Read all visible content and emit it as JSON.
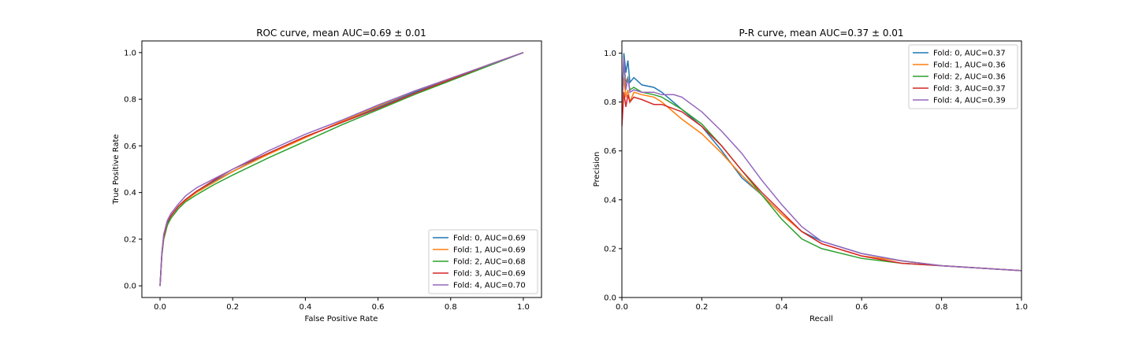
{
  "chart_data": [
    {
      "type": "line",
      "title": "ROC curve, mean AUC=0.69 ± 0.01",
      "xlabel": "False Positive Rate",
      "ylabel": "True Positive Rate",
      "xlim": [
        -0.05,
        1.05
      ],
      "ylim": [
        -0.05,
        1.05
      ],
      "xticks": [
        "0.0",
        "0.2",
        "0.4",
        "0.6",
        "0.8",
        "1.0"
      ],
      "yticks": [
        "0.0",
        "0.2",
        "0.4",
        "0.6",
        "0.8",
        "1.0"
      ],
      "grid": false,
      "legend_position": "lower-right",
      "series": [
        {
          "name": "Fold: 0, AUC=0.69",
          "color": "#1f77b4",
          "x": [
            0,
            0.005,
            0.01,
            0.02,
            0.03,
            0.05,
            0.07,
            0.1,
            0.15,
            0.2,
            0.3,
            0.4,
            0.5,
            0.6,
            0.7,
            0.8,
            0.9,
            1.0
          ],
          "y": [
            0,
            0.14,
            0.21,
            0.27,
            0.3,
            0.34,
            0.37,
            0.405,
            0.45,
            0.49,
            0.57,
            0.64,
            0.7,
            0.765,
            0.83,
            0.885,
            0.945,
            1.0
          ]
        },
        {
          "name": "Fold: 1, AUC=0.69",
          "color": "#ff7f0e",
          "x": [
            0,
            0.005,
            0.01,
            0.02,
            0.03,
            0.05,
            0.07,
            0.1,
            0.15,
            0.2,
            0.3,
            0.4,
            0.5,
            0.6,
            0.7,
            0.8,
            0.9,
            1.0
          ],
          "y": [
            0,
            0.13,
            0.2,
            0.26,
            0.29,
            0.33,
            0.365,
            0.4,
            0.445,
            0.49,
            0.565,
            0.635,
            0.705,
            0.77,
            0.835,
            0.89,
            0.945,
            1.0
          ]
        },
        {
          "name": "Fold: 2, AUC=0.68",
          "color": "#2ca02c",
          "x": [
            0,
            0.005,
            0.01,
            0.02,
            0.03,
            0.05,
            0.07,
            0.1,
            0.15,
            0.2,
            0.3,
            0.4,
            0.5,
            0.6,
            0.7,
            0.8,
            0.9,
            1.0
          ],
          "y": [
            0,
            0.13,
            0.2,
            0.26,
            0.29,
            0.33,
            0.36,
            0.39,
            0.435,
            0.475,
            0.55,
            0.62,
            0.69,
            0.755,
            0.82,
            0.88,
            0.94,
            1.0
          ]
        },
        {
          "name": "Fold: 3, AUC=0.69",
          "color": "#d62728",
          "x": [
            0,
            0.005,
            0.01,
            0.02,
            0.03,
            0.05,
            0.07,
            0.1,
            0.15,
            0.2,
            0.3,
            0.4,
            0.5,
            0.6,
            0.7,
            0.8,
            0.9,
            1.0
          ],
          "y": [
            0,
            0.14,
            0.21,
            0.275,
            0.3,
            0.34,
            0.37,
            0.405,
            0.455,
            0.5,
            0.57,
            0.64,
            0.7,
            0.76,
            0.825,
            0.885,
            0.945,
            1.0
          ]
        },
        {
          "name": "Fold: 4, AUC=0.70",
          "color": "#9467bd",
          "x": [
            0,
            0.005,
            0.01,
            0.02,
            0.03,
            0.05,
            0.07,
            0.1,
            0.15,
            0.2,
            0.3,
            0.4,
            0.5,
            0.6,
            0.7,
            0.8,
            0.9,
            1.0
          ],
          "y": [
            0,
            0.14,
            0.22,
            0.28,
            0.31,
            0.35,
            0.385,
            0.42,
            0.46,
            0.5,
            0.58,
            0.65,
            0.71,
            0.775,
            0.835,
            0.89,
            0.945,
            1.0
          ]
        }
      ]
    },
    {
      "type": "line",
      "title": "P-R curve, mean AUC=0.37 ± 0.01",
      "xlabel": "Recall",
      "ylabel": "Precision",
      "xlim": [
        0.0,
        1.0
      ],
      "ylim": [
        0.0,
        1.05
      ],
      "xticks": [
        "0.0",
        "0.2",
        "0.4",
        "0.6",
        "0.8",
        "1.0"
      ],
      "yticks": [
        "0.0",
        "0.2",
        "0.4",
        "0.6",
        "0.8",
        "1.0"
      ],
      "grid": false,
      "legend_position": "top-right",
      "series": [
        {
          "name": "Fold: 0, AUC=0.37",
          "color": "#1f77b4",
          "x": [
            0,
            0.005,
            0.01,
            0.015,
            0.02,
            0.03,
            0.05,
            0.08,
            0.1,
            0.15,
            0.2,
            0.25,
            0.3,
            0.35,
            0.4,
            0.45,
            0.5,
            0.6,
            0.7,
            0.8,
            0.9,
            1.0
          ],
          "y": [
            0.75,
            1.0,
            0.92,
            0.97,
            0.88,
            0.9,
            0.87,
            0.86,
            0.84,
            0.77,
            0.7,
            0.6,
            0.49,
            0.42,
            0.34,
            0.27,
            0.23,
            0.18,
            0.15,
            0.13,
            0.12,
            0.11
          ]
        },
        {
          "name": "Fold: 1, AUC=0.36",
          "color": "#ff7f0e",
          "x": [
            0,
            0.005,
            0.01,
            0.015,
            0.02,
            0.03,
            0.05,
            0.08,
            0.1,
            0.15,
            0.2,
            0.25,
            0.3,
            0.35,
            0.4,
            0.45,
            0.5,
            0.6,
            0.7,
            0.8,
            0.9,
            1.0
          ],
          "y": [
            0.78,
            0.9,
            0.82,
            0.85,
            0.8,
            0.84,
            0.83,
            0.82,
            0.8,
            0.73,
            0.67,
            0.59,
            0.5,
            0.42,
            0.34,
            0.27,
            0.22,
            0.17,
            0.15,
            0.13,
            0.12,
            0.11
          ]
        },
        {
          "name": "Fold: 2, AUC=0.36",
          "color": "#2ca02c",
          "x": [
            0,
            0.005,
            0.01,
            0.015,
            0.02,
            0.03,
            0.05,
            0.08,
            0.1,
            0.15,
            0.2,
            0.25,
            0.3,
            0.35,
            0.4,
            0.45,
            0.5,
            0.6,
            0.7,
            0.8,
            0.9,
            1.0
          ],
          "y": [
            0.8,
            0.95,
            0.88,
            0.9,
            0.85,
            0.86,
            0.84,
            0.83,
            0.82,
            0.77,
            0.71,
            0.62,
            0.52,
            0.42,
            0.32,
            0.24,
            0.2,
            0.16,
            0.14,
            0.13,
            0.12,
            0.11
          ]
        },
        {
          "name": "Fold: 3, AUC=0.37",
          "color": "#d62728",
          "x": [
            0,
            0.005,
            0.01,
            0.015,
            0.02,
            0.03,
            0.05,
            0.08,
            0.1,
            0.15,
            0.2,
            0.25,
            0.3,
            0.35,
            0.4,
            0.45,
            0.5,
            0.6,
            0.7,
            0.8,
            0.9,
            1.0
          ],
          "y": [
            0.7,
            0.84,
            0.78,
            0.83,
            0.8,
            0.82,
            0.81,
            0.79,
            0.79,
            0.76,
            0.7,
            0.62,
            0.52,
            0.43,
            0.35,
            0.27,
            0.22,
            0.17,
            0.14,
            0.13,
            0.12,
            0.11
          ]
        },
        {
          "name": "Fold: 4, AUC=0.39",
          "color": "#9467bd",
          "x": [
            0,
            0.005,
            0.01,
            0.015,
            0.02,
            0.03,
            0.05,
            0.08,
            0.1,
            0.13,
            0.15,
            0.2,
            0.25,
            0.3,
            0.35,
            0.4,
            0.45,
            0.5,
            0.6,
            0.7,
            0.8,
            0.9,
            1.0
          ],
          "y": [
            0.8,
            0.98,
            0.85,
            0.9,
            0.84,
            0.85,
            0.84,
            0.84,
            0.83,
            0.83,
            0.82,
            0.76,
            0.68,
            0.59,
            0.48,
            0.38,
            0.29,
            0.23,
            0.18,
            0.15,
            0.13,
            0.12,
            0.11
          ]
        }
      ]
    }
  ]
}
